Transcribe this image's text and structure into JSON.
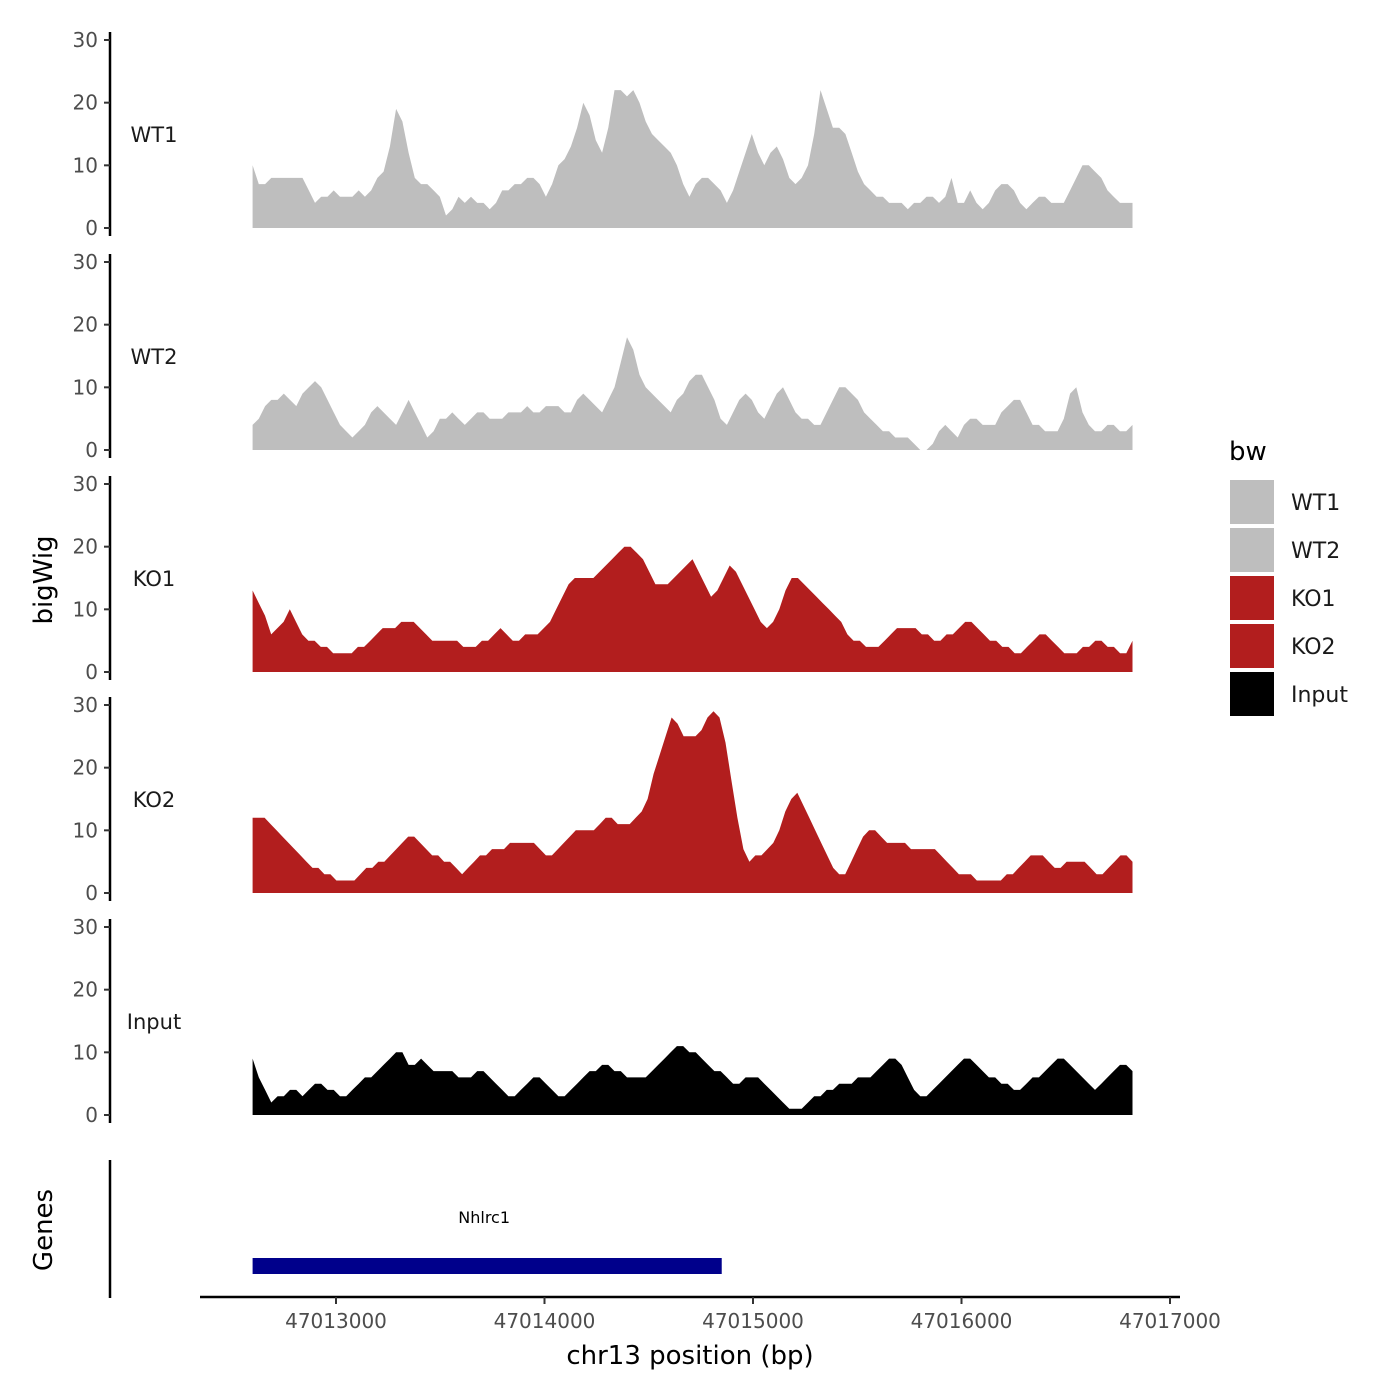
{
  "chart_data": {
    "type": "area",
    "ylabel": "bigWig",
    "ylabel_genes": "Genes",
    "xlabel": "chr13 position (bp)",
    "x_range": [
      47012600,
      47016820
    ],
    "xlim": [
      47012300,
      47017050
    ],
    "ylim": [
      0,
      30
    ],
    "y_ticks": [
      0,
      10,
      20,
      30
    ],
    "x_ticks": [
      47013000,
      47014000,
      47015000,
      47016000,
      47017000
    ],
    "x_tick_labels": [
      "47013000",
      "47014000",
      "47015000",
      "47016000",
      "47017000"
    ],
    "legend": {
      "title": "bw",
      "position": "right",
      "entries": [
        {
          "label": "WT1",
          "color": "#BEBEBE"
        },
        {
          "label": "WT2",
          "color": "#BEBEBE"
        },
        {
          "label": "KO1",
          "color": "#B21E1E"
        },
        {
          "label": "KO2",
          "color": "#B21E1E"
        },
        {
          "label": "Input",
          "color": "#000000"
        }
      ]
    },
    "series": [
      {
        "name": "WT1",
        "color": "#BEBEBE",
        "values": [
          10,
          7,
          7,
          8,
          8,
          8,
          8,
          8,
          8,
          6,
          4,
          5,
          5,
          6,
          5,
          5,
          5,
          6,
          5,
          6,
          8,
          9,
          13,
          19,
          17,
          12,
          8,
          7,
          7,
          6,
          5,
          2,
          3,
          5,
          4,
          5,
          4,
          4,
          3,
          4,
          6,
          6,
          7,
          7,
          8,
          8,
          7,
          5,
          7,
          10,
          11,
          13,
          16,
          20,
          18,
          14,
          12,
          16,
          22,
          22,
          21,
          22,
          20,
          17,
          15,
          14,
          13,
          12,
          10,
          7,
          5,
          7,
          8,
          8,
          7,
          6,
          4,
          6,
          9,
          12,
          15,
          12,
          10,
          12,
          13,
          11,
          8,
          7,
          8,
          10,
          15,
          22,
          19,
          16,
          16,
          15,
          12,
          9,
          7,
          6,
          5,
          5,
          4,
          4,
          4,
          3,
          4,
          4,
          5,
          5,
          4,
          5,
          8,
          4,
          4,
          6,
          4,
          3,
          4,
          6,
          7,
          7,
          6,
          4,
          3,
          4,
          5,
          5,
          4,
          4,
          4,
          6,
          8,
          10,
          10,
          9,
          8,
          6,
          5,
          4,
          4,
          4
        ]
      },
      {
        "name": "WT2",
        "color": "#BEBEBE",
        "values": [
          4,
          5,
          7,
          8,
          8,
          9,
          8,
          7,
          9,
          10,
          11,
          10,
          8,
          6,
          4,
          3,
          2,
          3,
          4,
          6,
          7,
          6,
          5,
          4,
          6,
          8,
          6,
          4,
          2,
          3,
          5,
          5,
          6,
          5,
          4,
          5,
          6,
          6,
          5,
          5,
          5,
          6,
          6,
          6,
          7,
          6,
          6,
          7,
          7,
          7,
          6,
          6,
          8,
          9,
          8,
          7,
          6,
          8,
          10,
          14,
          18,
          16,
          12,
          10,
          9,
          8,
          7,
          6,
          8,
          9,
          11,
          12,
          12,
          10,
          8,
          5,
          4,
          6,
          8,
          9,
          8,
          6,
          5,
          7,
          9,
          10,
          8,
          6,
          5,
          5,
          4,
          4,
          6,
          8,
          10,
          10,
          9,
          8,
          6,
          5,
          4,
          3,
          3,
          2,
          2,
          2,
          1,
          0,
          0,
          1,
          3,
          4,
          3,
          2,
          4,
          5,
          5,
          4,
          4,
          4,
          6,
          7,
          8,
          8,
          6,
          4,
          4,
          3,
          3,
          3,
          5,
          9,
          10,
          6,
          4,
          3,
          3,
          4,
          4,
          3,
          3,
          4
        ]
      },
      {
        "name": "KO1",
        "color": "#B21E1E",
        "values": [
          13,
          11,
          9,
          6,
          7,
          8,
          10,
          8,
          6,
          5,
          5,
          4,
          4,
          3,
          3,
          3,
          3,
          4,
          4,
          5,
          6,
          7,
          7,
          7,
          8,
          8,
          8,
          7,
          6,
          5,
          5,
          5,
          5,
          5,
          4,
          4,
          4,
          5,
          5,
          6,
          7,
          6,
          5,
          5,
          6,
          6,
          6,
          7,
          8,
          10,
          12,
          14,
          15,
          15,
          15,
          15,
          16,
          17,
          18,
          19,
          20,
          20,
          19,
          18,
          16,
          14,
          14,
          14,
          15,
          16,
          17,
          18,
          16,
          14,
          12,
          13,
          15,
          17,
          16,
          14,
          12,
          10,
          8,
          7,
          8,
          10,
          13,
          15,
          15,
          14,
          13,
          12,
          11,
          10,
          9,
          8,
          6,
          5,
          5,
          4,
          4,
          4,
          5,
          6,
          7,
          7,
          7,
          7,
          6,
          6,
          5,
          5,
          6,
          6,
          7,
          8,
          8,
          7,
          6,
          5,
          5,
          4,
          4,
          3,
          3,
          4,
          5,
          6,
          6,
          5,
          4,
          3,
          3,
          3,
          4,
          4,
          5,
          5,
          4,
          4,
          3,
          3,
          5
        ]
      },
      {
        "name": "KO2",
        "color": "#B21E1E",
        "values": [
          12,
          12,
          12,
          11,
          10,
          9,
          8,
          7,
          6,
          5,
          4,
          4,
          3,
          3,
          2,
          2,
          2,
          2,
          3,
          4,
          4,
          5,
          5,
          6,
          7,
          8,
          9,
          9,
          8,
          7,
          6,
          6,
          5,
          5,
          4,
          3,
          4,
          5,
          6,
          6,
          7,
          7,
          7,
          8,
          8,
          8,
          8,
          8,
          7,
          6,
          6,
          7,
          8,
          9,
          10,
          10,
          10,
          10,
          11,
          12,
          12,
          11,
          11,
          11,
          12,
          13,
          15,
          19,
          22,
          25,
          28,
          27,
          25,
          25,
          25,
          26,
          28,
          29,
          28,
          24,
          18,
          12,
          7,
          5,
          6,
          6,
          7,
          8,
          10,
          13,
          15,
          16,
          14,
          12,
          10,
          8,
          6,
          4,
          3,
          3,
          5,
          7,
          9,
          10,
          10,
          9,
          8,
          8,
          8,
          8,
          7,
          7,
          7,
          7,
          7,
          6,
          5,
          4,
          3,
          3,
          3,
          2,
          2,
          2,
          2,
          2,
          3,
          3,
          4,
          5,
          6,
          6,
          6,
          5,
          4,
          4,
          5,
          5,
          5,
          5,
          4,
          3,
          3,
          4,
          5,
          6,
          6,
          5
        ]
      },
      {
        "name": "Input",
        "color": "#000000",
        "values": [
          9,
          6,
          4,
          2,
          3,
          3,
          4,
          4,
          3,
          4,
          5,
          5,
          4,
          4,
          3,
          3,
          4,
          5,
          6,
          6,
          7,
          8,
          9,
          10,
          10,
          8,
          8,
          9,
          8,
          7,
          7,
          7,
          7,
          6,
          6,
          6,
          7,
          7,
          6,
          5,
          4,
          3,
          3,
          4,
          5,
          6,
          6,
          5,
          4,
          3,
          3,
          4,
          5,
          6,
          7,
          7,
          8,
          8,
          7,
          7,
          6,
          6,
          6,
          6,
          7,
          8,
          9,
          10,
          11,
          11,
          10,
          10,
          9,
          8,
          7,
          7,
          6,
          5,
          5,
          6,
          6,
          6,
          5,
          4,
          3,
          2,
          1,
          1,
          1,
          2,
          3,
          3,
          4,
          4,
          5,
          5,
          5,
          6,
          6,
          6,
          7,
          8,
          9,
          9,
          8,
          6,
          4,
          3,
          3,
          4,
          5,
          6,
          7,
          8,
          9,
          9,
          8,
          7,
          6,
          6,
          5,
          5,
          4,
          4,
          5,
          6,
          6,
          7,
          8,
          9,
          9,
          8,
          7,
          6,
          5,
          4,
          5,
          6,
          7,
          8,
          8,
          7
        ]
      }
    ],
    "genes": [
      {
        "name": "Nhlrc1",
        "start": 47012600,
        "end": 47014850,
        "color": "#00008B"
      }
    ]
  }
}
